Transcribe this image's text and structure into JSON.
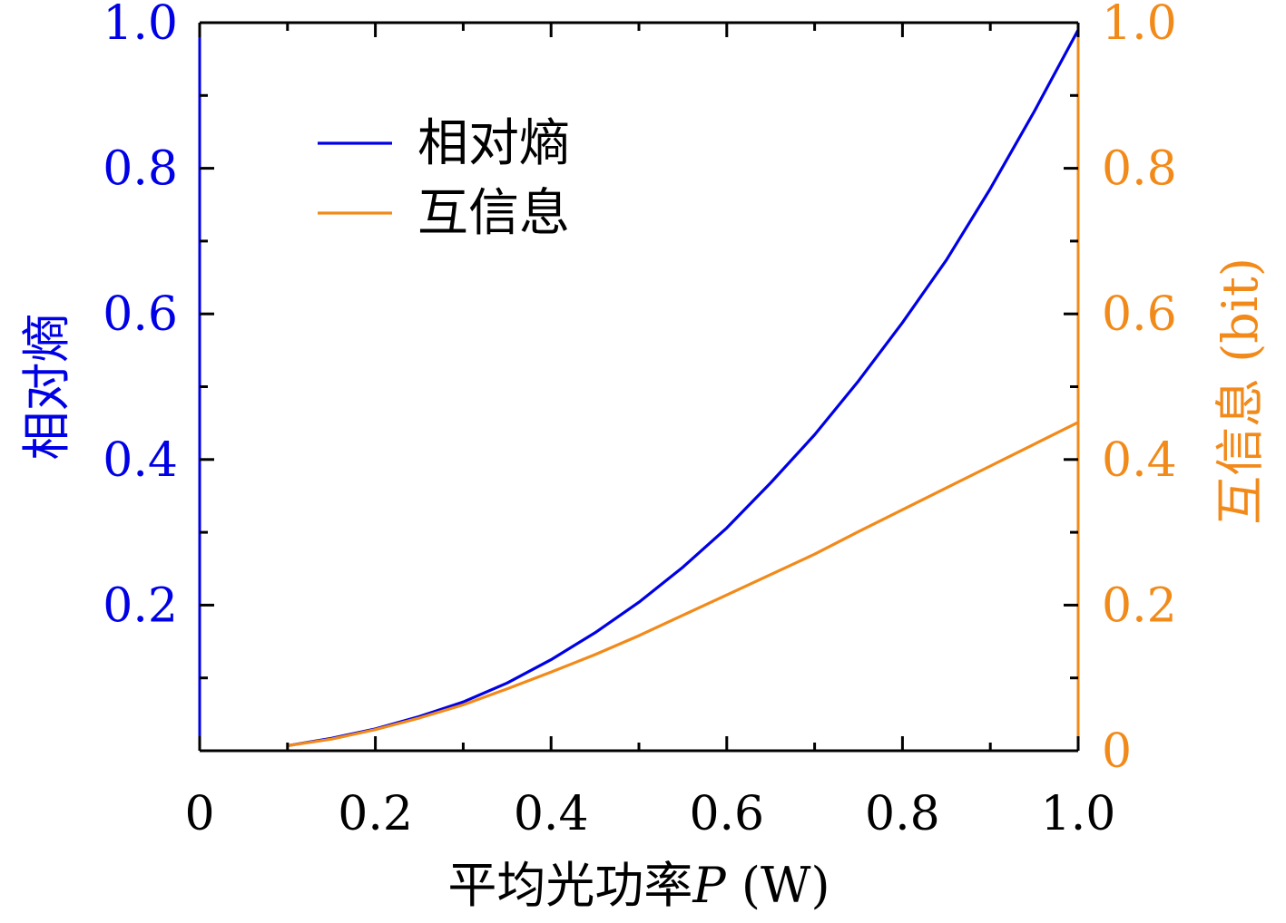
{
  "chart_data": {
    "type": "line",
    "xlabel": {
      "prefix": "平均光功率",
      "variable": "P",
      "unit": " (W)"
    },
    "ylabel_left": "相对熵",
    "ylabel_right": "互信息 (bit)",
    "xlim": [
      0,
      1.0
    ],
    "ylim_left": [
      0,
      1.0
    ],
    "ylim_right": [
      0,
      1.0
    ],
    "x_ticks": [
      "0",
      "0.2",
      "0.4",
      "0.6",
      "0.8",
      "1.0"
    ],
    "y_left_ticks": [
      "0.2",
      "0.4",
      "0.6",
      "0.8",
      "1.0"
    ],
    "y_right_ticks": [
      "0",
      "0.2",
      "0.4",
      "0.6",
      "0.8",
      "1.0"
    ],
    "legend_position": "top-left",
    "grid": false,
    "colors": {
      "relative_entropy": "#0000e6",
      "mutual_information": "#f28a1a",
      "axes": "#000000"
    },
    "series": [
      {
        "name": "相对熵",
        "axis": "left",
        "color": "#0000e6",
        "x": [
          0.1,
          0.15,
          0.2,
          0.25,
          0.3,
          0.35,
          0.4,
          0.45,
          0.5,
          0.55,
          0.6,
          0.65,
          0.7,
          0.75,
          0.8,
          0.85,
          0.9,
          0.95,
          1.0
        ],
        "y": [
          0.007,
          0.017,
          0.03,
          0.047,
          0.067,
          0.093,
          0.125,
          0.162,
          0.204,
          0.252,
          0.306,
          0.368,
          0.434,
          0.508,
          0.588,
          0.674,
          0.772,
          0.878,
          0.99
        ]
      },
      {
        "name": "互信息",
        "axis": "right",
        "color": "#f28a1a",
        "x": [
          0.1,
          0.15,
          0.2,
          0.25,
          0.3,
          0.35,
          0.4,
          0.45,
          0.5,
          0.55,
          0.6,
          0.65,
          0.7,
          0.75,
          0.8,
          0.85,
          0.9,
          0.95,
          1.0
        ],
        "y": [
          0.007,
          0.016,
          0.029,
          0.045,
          0.063,
          0.085,
          0.108,
          0.132,
          0.158,
          0.186,
          0.214,
          0.242,
          0.27,
          0.301,
          0.331,
          0.361,
          0.391,
          0.421,
          0.451
        ]
      }
    ]
  }
}
